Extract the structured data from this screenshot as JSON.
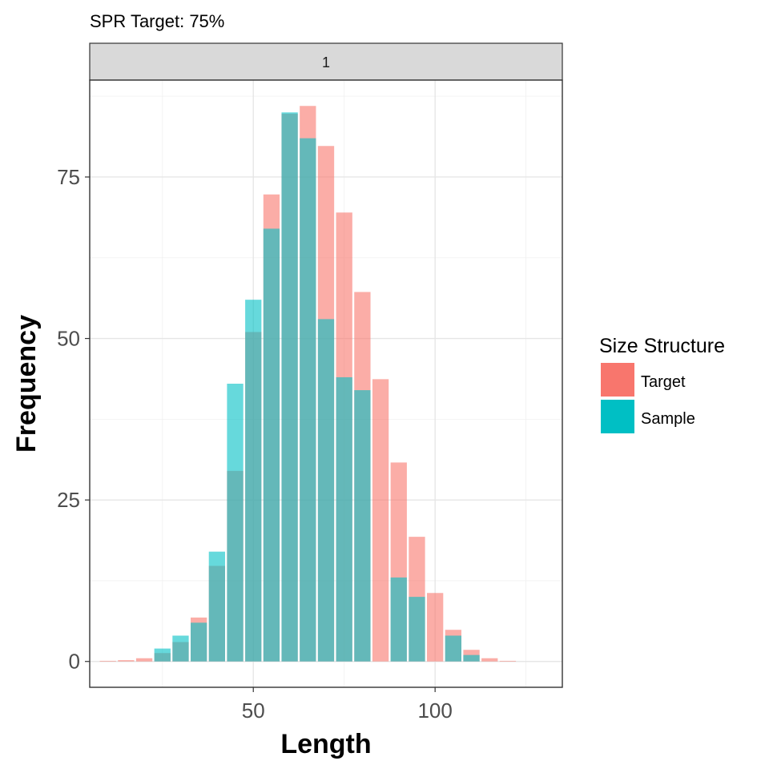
{
  "chart_data": {
    "type": "bar",
    "title": "SPR Target: 75%",
    "facet_label": "1",
    "xlabel": "Length",
    "ylabel": "Frequency",
    "xlim": [
      5,
      135
    ],
    "ylim": [
      -4,
      90
    ],
    "x_ticks": [
      50,
      100
    ],
    "y_ticks": [
      0,
      25,
      50,
      75
    ],
    "x_tick_labels": [
      "50",
      "100"
    ],
    "y_tick_labels": [
      "0",
      "25",
      "50",
      "75"
    ],
    "grid": true,
    "bin_width": 5,
    "legend": {
      "title": "Size Structure",
      "position": "right",
      "entries": [
        "Target",
        "Sample"
      ]
    },
    "x": [
      10,
      15,
      20,
      25,
      30,
      35,
      40,
      45,
      50,
      55,
      60,
      65,
      70,
      75,
      80,
      85,
      90,
      95,
      100,
      105,
      110,
      115,
      120
    ],
    "series": [
      {
        "name": "Target",
        "color": "#F8766D",
        "values": [
          0.1,
          0.2,
          0.5,
          1.3,
          3.0,
          6.8,
          14.8,
          29.5,
          51.0,
          72.3,
          84.8,
          86.0,
          79.8,
          69.5,
          57.2,
          43.7,
          30.8,
          19.3,
          10.6,
          4.9,
          1.8,
          0.5,
          0.1
        ]
      },
      {
        "name": "Sample",
        "color": "#00BFC4",
        "values": [
          0,
          0,
          0,
          2.0,
          4.0,
          6.0,
          17.0,
          43.0,
          56.0,
          67.0,
          85.0,
          81.0,
          53.0,
          44.0,
          42.0,
          0,
          13.0,
          10.0,
          0,
          4.0,
          1.0,
          0,
          0
        ]
      }
    ]
  }
}
